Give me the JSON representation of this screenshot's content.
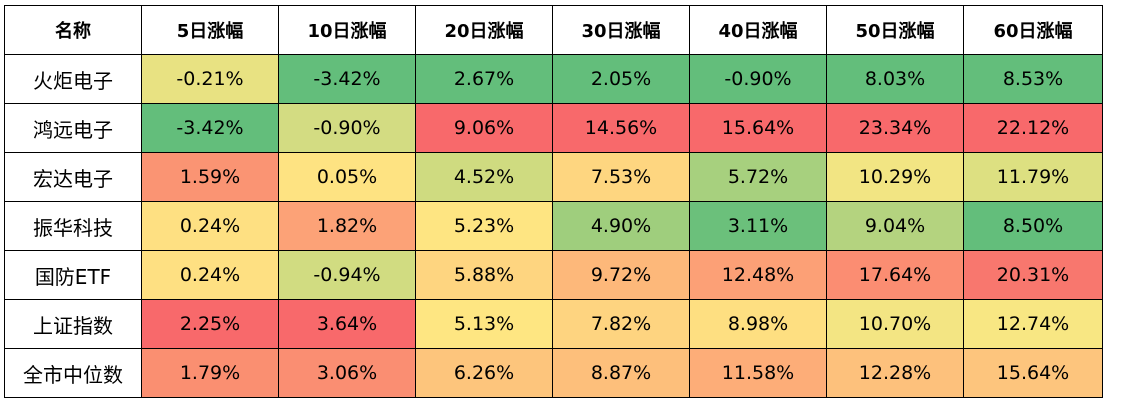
{
  "chart_data": {
    "type": "heatmap",
    "columns": [
      "名称",
      "5日涨幅",
      "10日涨幅",
      "20日涨幅",
      "30日涨幅",
      "40日涨幅",
      "50日涨幅",
      "60日涨幅"
    ],
    "rows": [
      {
        "name": "火炬电子",
        "values": [
          "-0.21%",
          "-3.42%",
          "2.67%",
          "2.05%",
          "-0.90%",
          "8.03%",
          "8.53%"
        ],
        "colors": [
          "#e8e282",
          "#63be7b",
          "#63be7b",
          "#63be7b",
          "#63be7b",
          "#63be7b",
          "#63be7b"
        ]
      },
      {
        "name": "鸿远电子",
        "values": [
          "-3.42%",
          "-0.90%",
          "9.06%",
          "14.56%",
          "15.64%",
          "23.34%",
          "22.12%"
        ],
        "colors": [
          "#63be7b",
          "#d3dc82",
          "#f8696b",
          "#f8696b",
          "#f8696b",
          "#f8696b",
          "#f8696b"
        ]
      },
      {
        "name": "宏达电子",
        "values": [
          "1.59%",
          "0.05%",
          "4.52%",
          "7.53%",
          "5.72%",
          "10.29%",
          "11.79%"
        ],
        "colors": [
          "#fa9473",
          "#fee382",
          "#cfdb80",
          "#fed680",
          "#a7d07e",
          "#f2e583",
          "#dde081"
        ]
      },
      {
        "name": "振华科技",
        "values": [
          "0.24%",
          "1.82%",
          "5.23%",
          "4.90%",
          "3.11%",
          "9.04%",
          "8.50%"
        ],
        "colors": [
          "#fee082",
          "#fca277",
          "#fee582",
          "#9fce7d",
          "#6bc07b",
          "#b4d37f",
          "#63be7b"
        ]
      },
      {
        "name": "国防ETF",
        "values": [
          "0.24%",
          "-0.94%",
          "5.88%",
          "9.72%",
          "12.48%",
          "17.64%",
          "20.31%"
        ],
        "colors": [
          "#fee082",
          "#d1dc81",
          "#fed580",
          "#fdb87a",
          "#fca076",
          "#fb8d72",
          "#f8776e"
        ]
      },
      {
        "name": "上证指数",
        "values": [
          "2.25%",
          "3.64%",
          "5.13%",
          "7.82%",
          "8.98%",
          "10.70%",
          "12.74%"
        ],
        "colors": [
          "#f8696b",
          "#f8696b",
          "#fee682",
          "#fed480",
          "#fedf81",
          "#f3e583",
          "#f8e783"
        ]
      },
      {
        "name": "全市中位数",
        "values": [
          "1.79%",
          "3.06%",
          "6.26%",
          "8.87%",
          "11.58%",
          "12.28%",
          "15.64%"
        ],
        "colors": [
          "#fa8f71",
          "#fa8e72",
          "#fdc57c",
          "#fdbf7b",
          "#fdad78",
          "#fdc17c",
          "#fdc57d"
        ]
      }
    ]
  }
}
